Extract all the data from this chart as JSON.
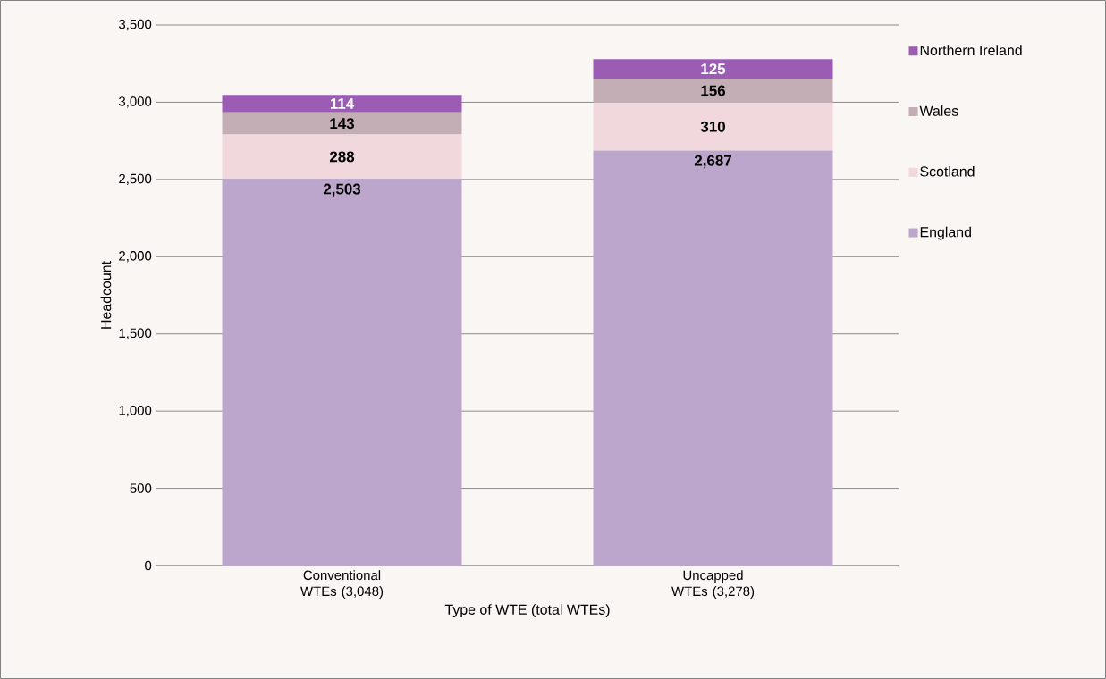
{
  "chart_data": {
    "type": "bar",
    "stacked": true,
    "xlabel": "Type of WTE (total WTEs)",
    "ylabel": "Headcount",
    "categories": [
      "Conventional WTEs (3,048)",
      "Uncapped WTEs (3,278)"
    ],
    "series": [
      {
        "name": "England",
        "color": "#bda6cc",
        "values": [
          2503,
          2687
        ],
        "value_labels": [
          "2,503",
          "2,687"
        ]
      },
      {
        "name": "Scotland",
        "color": "#f0d8dc",
        "values": [
          288,
          310
        ],
        "value_labels": [
          "288",
          "310"
        ]
      },
      {
        "name": "Wales",
        "color": "#c4aeb6",
        "values": [
          143,
          156
        ],
        "value_labels": [
          "143",
          "156"
        ]
      },
      {
        "name": "Northern Ireland",
        "color": "#9b5cb4",
        "values": [
          114,
          125
        ],
        "value_labels": [
          "114",
          "125"
        ]
      }
    ],
    "ylim": [
      0,
      3500
    ],
    "yticks": [
      0,
      500,
      {
        "value": 1000,
        "label": "1,000"
      },
      {
        "value": 1500,
        "label": "1,500"
      },
      {
        "value": 2000,
        "label": "2,000"
      },
      {
        "value": 2500,
        "label": "2,500"
      },
      {
        "value": 3000,
        "label": "3,000"
      },
      {
        "value": 3500,
        "label": "3,500"
      }
    ],
    "grid": "y",
    "legend": "right"
  }
}
